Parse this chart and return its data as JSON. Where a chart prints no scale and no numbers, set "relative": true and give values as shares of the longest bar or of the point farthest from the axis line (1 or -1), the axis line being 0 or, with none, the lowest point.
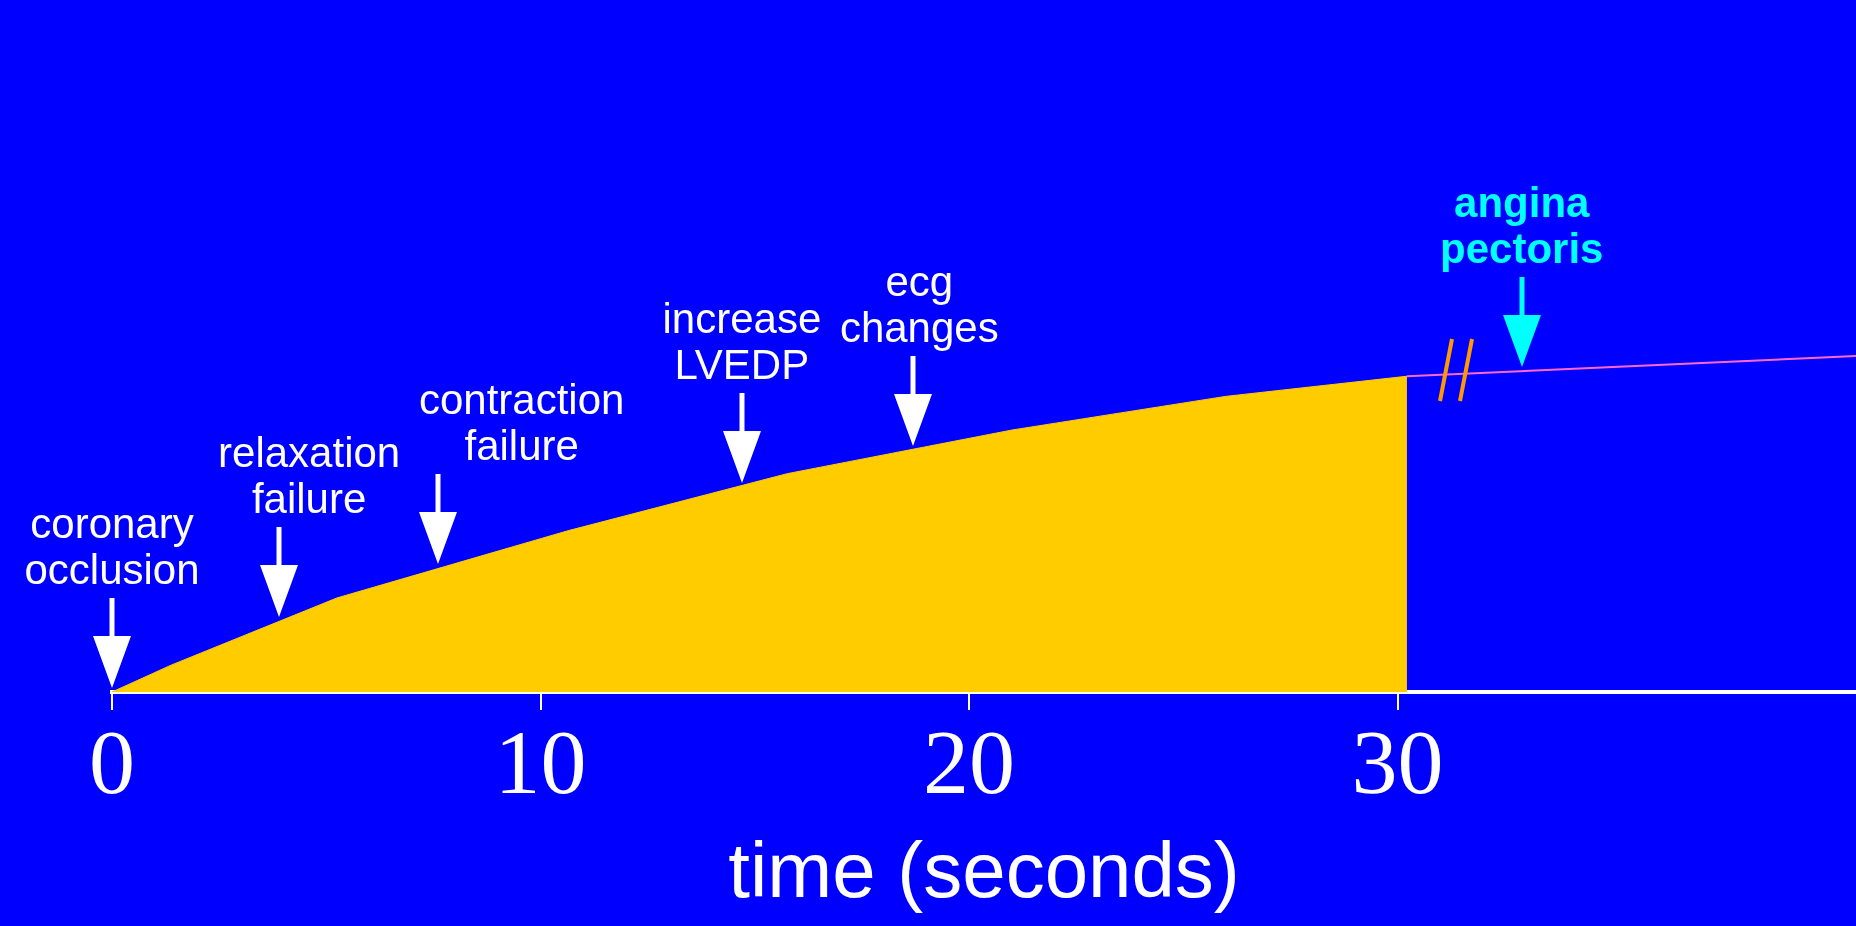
{
  "chart_data": {
    "type": "area",
    "xlabel": "time (seconds)",
    "relative": true,
    "xlim": [
      0,
      40.7
    ],
    "xticks": [
      0,
      10,
      20,
      30
    ],
    "grid": false,
    "legend": false,
    "x": [
      0,
      1.38,
      5.25,
      10.64,
      15.76,
      21.01,
      25.99,
      30.22
    ],
    "series": [
      {
        "color": "#ffcc00",
        "values": [
          0,
          0.08,
          0.28,
          0.48,
          0.65,
          0.78,
          0.88,
          0.94
        ]
      },
      {
        "type": "line",
        "color": "#ff66cc",
        "x": [
          30.22,
          40.7
        ],
        "values": [
          0.94,
          1
        ]
      }
    ],
    "annotations": [
      {
        "text": "coronary occlusion",
        "x": 0,
        "y": 0
      },
      {
        "text": "relaxation failure",
        "x": 3.9,
        "y": 0.21
      },
      {
        "text": "contraction failure",
        "x": 7.6,
        "y": 0.37
      },
      {
        "text": "increase LVEDP",
        "x": 14.7,
        "y": 0.61
      },
      {
        "text": "ecg changes",
        "x": 18.7,
        "y": 0.72
      },
      {
        "text": "angina pectoris",
        "x": 32.9,
        "y": 0.955
      }
    ]
  }
}
